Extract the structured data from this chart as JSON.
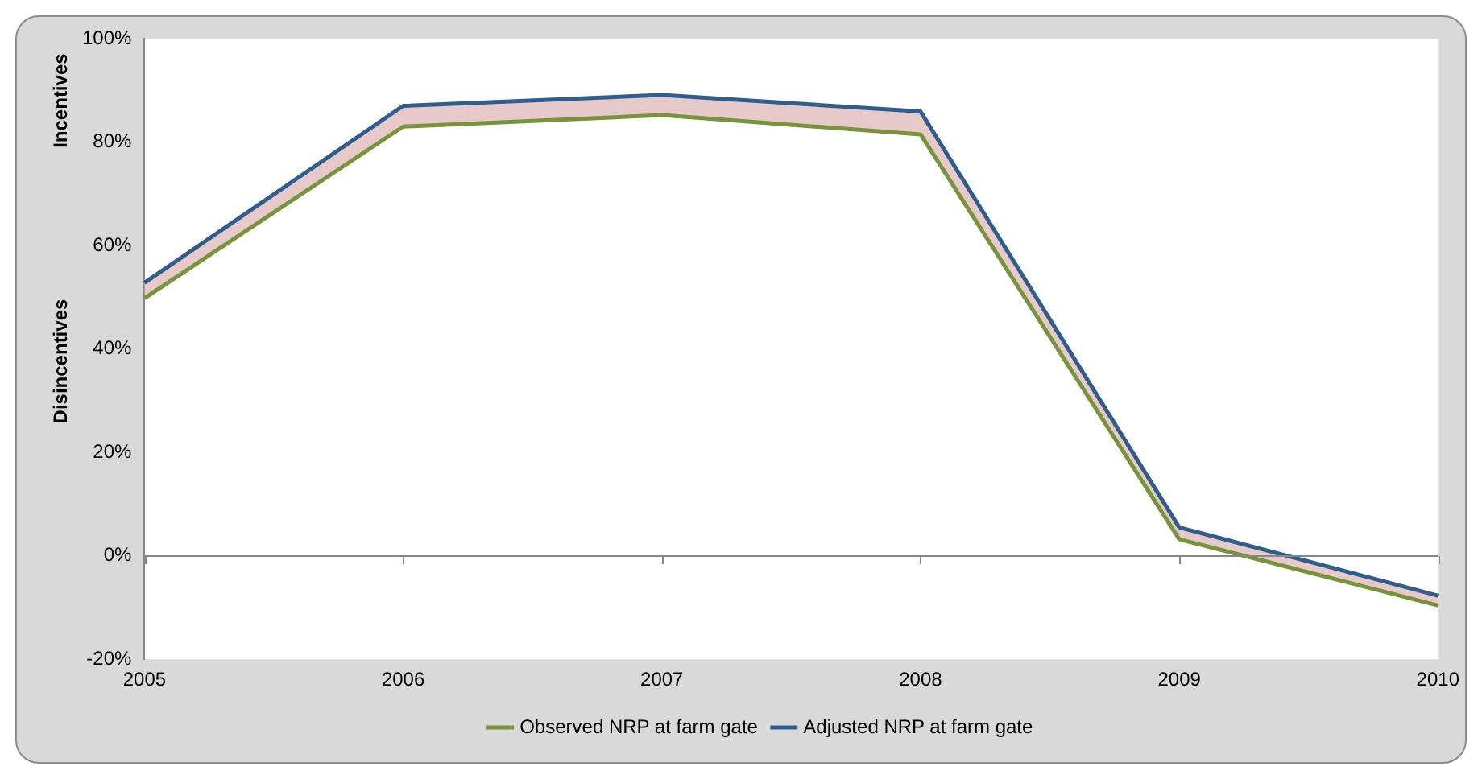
{
  "chart_data": {
    "type": "line",
    "categories": [
      "2005",
      "2006",
      "2007",
      "2008",
      "2009",
      "2010"
    ],
    "series": [
      {
        "name": "Observed NRP at farm gate",
        "color": "#77933c",
        "values": [
          49.8,
          83,
          85.2,
          81.5,
          3.2,
          -9.6
        ]
      },
      {
        "name": "Adjusted NRP at farm gate",
        "color": "#2f5d8e",
        "values": [
          52.8,
          87,
          89.1,
          85.9,
          5.5,
          -7.7
        ],
        "lower": [
          49.8,
          83,
          85.2,
          81.5,
          3.2,
          -9.6
        ],
        "upper": [
          52.8,
          87,
          89.1,
          85.9,
          5.5,
          -7.7
        ]
      }
    ],
    "ylim": [
      -20,
      100
    ],
    "yticks": [
      {
        "value": -20,
        "label": "-20%"
      },
      {
        "value": 0,
        "label": "0%"
      },
      {
        "value": 20,
        "label": "20%"
      },
      {
        "value": 40,
        "label": "40%"
      },
      {
        "value": 60,
        "label": "60%"
      },
      {
        "value": 80,
        "label": "80%"
      },
      {
        "value": 100,
        "label": "100%"
      }
    ],
    "annotations": [
      "Incentives",
      "Disincentives"
    ],
    "ref_lines": [
      {
        "axis": "y",
        "value": 0
      }
    ],
    "grid": false,
    "legend": "bottom",
    "marker": "none",
    "line_style": "solid"
  }
}
